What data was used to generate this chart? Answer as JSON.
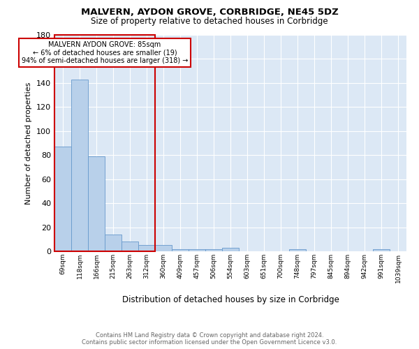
{
  "title1": "MALVERN, AYDON GROVE, CORBRIDGE, NE45 5DZ",
  "title2": "Size of property relative to detached houses in Corbridge",
  "xlabel": "Distribution of detached houses by size in Corbridge",
  "ylabel": "Number of detached properties",
  "footnote": "Contains HM Land Registry data © Crown copyright and database right 2024.\nContains public sector information licensed under the Open Government Licence v3.0.",
  "categories": [
    "69sqm",
    "118sqm",
    "166sqm",
    "215sqm",
    "263sqm",
    "312sqm",
    "360sqm",
    "409sqm",
    "457sqm",
    "506sqm",
    "554sqm",
    "603sqm",
    "651sqm",
    "700sqm",
    "748sqm",
    "797sqm",
    "845sqm",
    "894sqm",
    "942sqm",
    "991sqm",
    "1039sqm"
  ],
  "values": [
    87,
    143,
    79,
    14,
    8,
    5,
    5,
    2,
    2,
    2,
    3,
    0,
    0,
    0,
    2,
    0,
    0,
    0,
    0,
    2,
    0
  ],
  "bar_color": "#b8d0ea",
  "bar_edge_color": "#6699cc",
  "highlight_color": "#cc0000",
  "annotation_text": "MALVERN AYDON GROVE: 85sqm\n← 6% of detached houses are smaller (19)\n94% of semi-detached houses are larger (318) →",
  "ylim": [
    0,
    180
  ],
  "plot_background": "#dce8f5"
}
